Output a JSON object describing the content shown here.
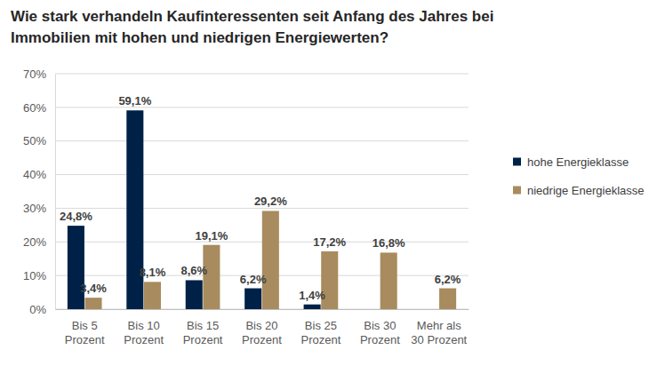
{
  "chart_data": {
    "type": "bar",
    "title": "Wie stark verhandeln Kaufinteressenten seit Anfang des Jahres bei\nImmobilien mit hohen und niedrigen Energiewerten?",
    "categories": [
      "Bis 5\nProzent",
      "Bis 10\nProzent",
      "Bis 15\nProzent",
      "Bis 20\nProzent",
      "Bis 25\nProzent",
      "Bis 30\nProzent",
      "Mehr als\n30 Prozent"
    ],
    "series": [
      {
        "name": "hohe Energieklasse",
        "color": "#002147",
        "values": [
          24.8,
          59.1,
          8.6,
          6.2,
          1.4,
          null,
          null
        ],
        "value_labels": [
          "24,8%",
          "59,1%",
          "8,6%",
          "6,2%",
          "1,4%",
          null,
          null
        ]
      },
      {
        "name": "niedrige Energieklasse",
        "color": "#a88b5e",
        "values": [
          3.4,
          8.1,
          19.1,
          29.2,
          17.2,
          16.8,
          6.2
        ],
        "value_labels": [
          "3,4%",
          "8,1%",
          "19,1%",
          "29,2%",
          "17,2%",
          "16,8%",
          "6,2%"
        ]
      }
    ],
    "ylim": [
      0,
      70
    ],
    "yticks": [
      {
        "value": 0,
        "label": "0%"
      },
      {
        "value": 10,
        "label": "10%"
      },
      {
        "value": 20,
        "label": "20%"
      },
      {
        "value": 30,
        "label": "30%"
      },
      {
        "value": 40,
        "label": "40%"
      },
      {
        "value": 50,
        "label": "50%"
      },
      {
        "value": 60,
        "label": "60%"
      },
      {
        "value": 70,
        "label": "70%"
      }
    ],
    "grid": true,
    "legend": "right",
    "data_labels": true
  }
}
